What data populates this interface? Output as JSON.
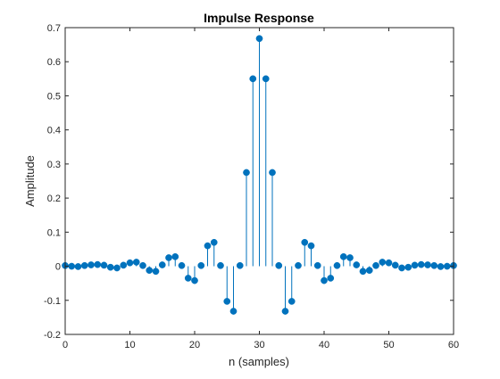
{
  "chart_data": {
    "type": "stem",
    "title": "Impulse Response",
    "xlabel": "n (samples)",
    "ylabel": "Amplitude",
    "xlim": [
      0,
      60
    ],
    "ylim": [
      -0.2,
      0.7
    ],
    "xticks": [
      0,
      10,
      20,
      30,
      40,
      50,
      60
    ],
    "yticks": [
      -0.2,
      -0.1,
      0,
      0.1,
      0.2,
      0.3,
      0.4,
      0.5,
      0.6,
      0.7
    ],
    "xtick_labels": [
      "0",
      "10",
      "20",
      "30",
      "40",
      "50",
      "60"
    ],
    "ytick_labels": [
      "-0.2",
      "-0.1",
      "0",
      "0.1",
      "0.2",
      "0.3",
      "0.4",
      "0.5",
      "0.6",
      "0.7"
    ],
    "grid": false,
    "color": "#0072BD",
    "series": [
      {
        "x": [
          0,
          1,
          2,
          3,
          4,
          5,
          6,
          7,
          8,
          9,
          10,
          11,
          12,
          13,
          14,
          15,
          16,
          17,
          18,
          19,
          20,
          21,
          22,
          23,
          24,
          25,
          26,
          27,
          28,
          29,
          30,
          31,
          32,
          33,
          34,
          35,
          36,
          37,
          38,
          39,
          40,
          41,
          42,
          43,
          44,
          45,
          46,
          47,
          48,
          49,
          50,
          51,
          52,
          53,
          54,
          55,
          56,
          57,
          58,
          59,
          60
        ],
        "values": [
          0.002,
          0.0,
          -0.001,
          0.002,
          0.004,
          0.005,
          0.003,
          -0.003,
          -0.005,
          0.003,
          0.01,
          0.012,
          0.002,
          -0.012,
          -0.015,
          0.004,
          0.025,
          0.028,
          0.002,
          -0.035,
          -0.042,
          0.002,
          0.06,
          0.07,
          0.002,
          -0.103,
          -0.132,
          0.002,
          0.275,
          0.55,
          0.668,
          0.55,
          0.275,
          0.002,
          -0.132,
          -0.103,
          0.002,
          0.07,
          0.06,
          0.002,
          -0.042,
          -0.035,
          0.002,
          0.028,
          0.025,
          0.004,
          -0.015,
          -0.012,
          0.002,
          0.012,
          0.01,
          0.003,
          -0.005,
          -0.003,
          0.003,
          0.005,
          0.004,
          0.002,
          -0.001,
          0.0,
          0.002
        ]
      }
    ]
  }
}
